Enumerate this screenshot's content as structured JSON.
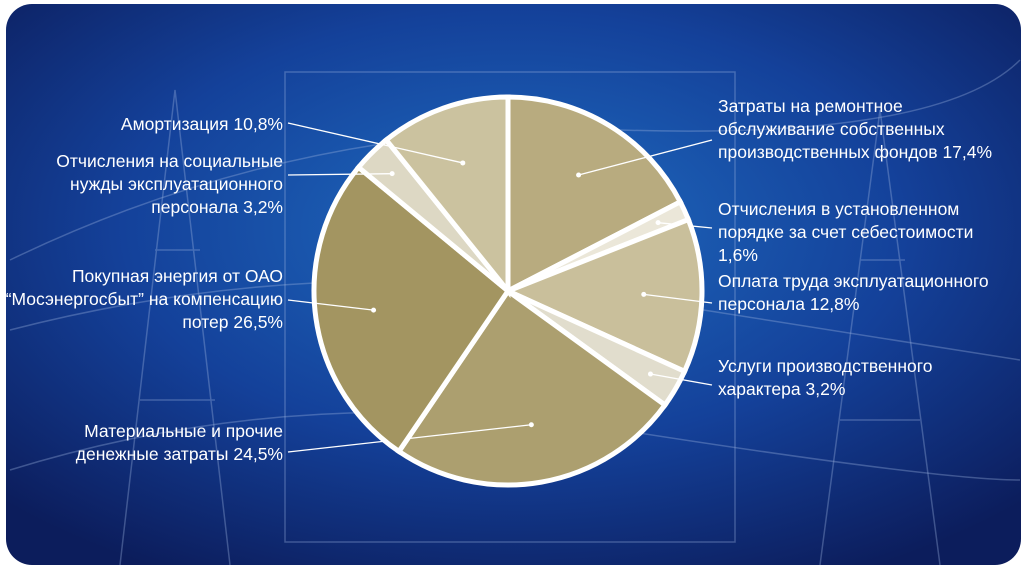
{
  "chart_data": {
    "type": "pie",
    "categories": [
      "Затраты на ремонтное обслуживание собственных производственных фондов",
      "Отчисления в установленном порядке за счет себестоимости",
      "Оплата труда эксплуатационного персонала",
      "Услуги производственного характера",
      "Материальные и прочие денежные затраты",
      "Покупная энергия от ОАО “Мосэнергосбыт” на компенсацию потер",
      "Отчисления на социальные нужды эксплуатационного персонала",
      "Амортизация"
    ],
    "values": [
      17.4,
      1.6,
      12.8,
      3.2,
      24.5,
      26.5,
      3.2,
      10.8
    ],
    "value_labels": [
      "17,4%",
      "1,6%",
      "12,8%",
      "3,2%",
      "24,5%",
      "26,5%",
      "3,2%",
      "10,8%"
    ],
    "colors": [
      "#b8ab7f",
      "#ebe7d9",
      "#c9bf9b",
      "#e1ddcd",
      "#ac9f6f",
      "#a39561",
      "#ddd8c4",
      "#cbc29f"
    ]
  }
}
